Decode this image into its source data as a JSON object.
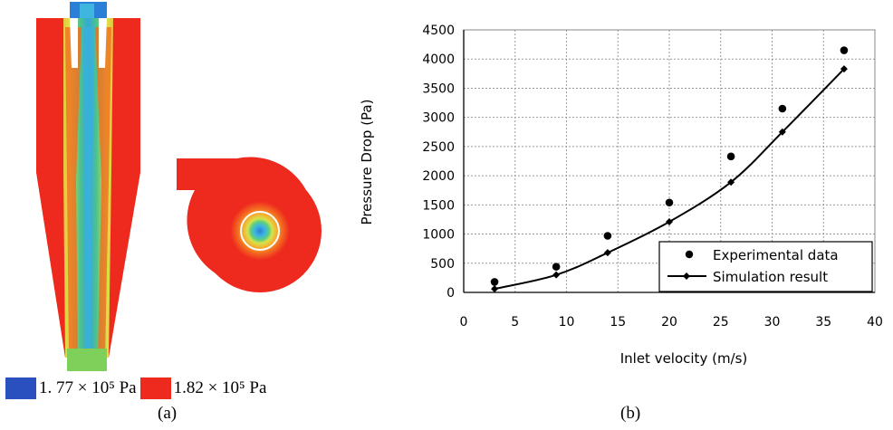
{
  "panel_a": {
    "legend": [
      {
        "label": "1. 77 × 10⁵ Pa",
        "color": "#2a4fbf"
      },
      {
        "label": "1.82 × 10⁵ Pa",
        "color": "#ee2a1f"
      }
    ],
    "caption": "(a)"
  },
  "panel_b": {
    "caption": "(b)"
  },
  "chart_data": {
    "type": "scatter",
    "xlabel": "Inlet velocity (m/s)",
    "ylabel": "Pressure Drop (Pa)",
    "xlim": [
      0,
      40
    ],
    "ylim": [
      0,
      4500
    ],
    "x_ticks": [
      0,
      5,
      10,
      15,
      20,
      25,
      30,
      35,
      40
    ],
    "y_ticks": [
      0,
      500,
      1000,
      1500,
      2000,
      2500,
      3000,
      3500,
      4000,
      4500
    ],
    "grid": true,
    "legend_position": "bottom-right",
    "series": [
      {
        "name": "Experimental data",
        "style": "markers",
        "x": [
          3,
          9,
          14,
          20,
          26,
          31,
          37
        ],
        "y": [
          180,
          440,
          970,
          1540,
          2330,
          3150,
          4150
        ]
      },
      {
        "name": "Simulation result",
        "style": "line+markers",
        "x": [
          3,
          9,
          14,
          20,
          26,
          31,
          37
        ],
        "y": [
          60,
          300,
          680,
          1210,
          1890,
          2750,
          3830
        ]
      }
    ]
  }
}
